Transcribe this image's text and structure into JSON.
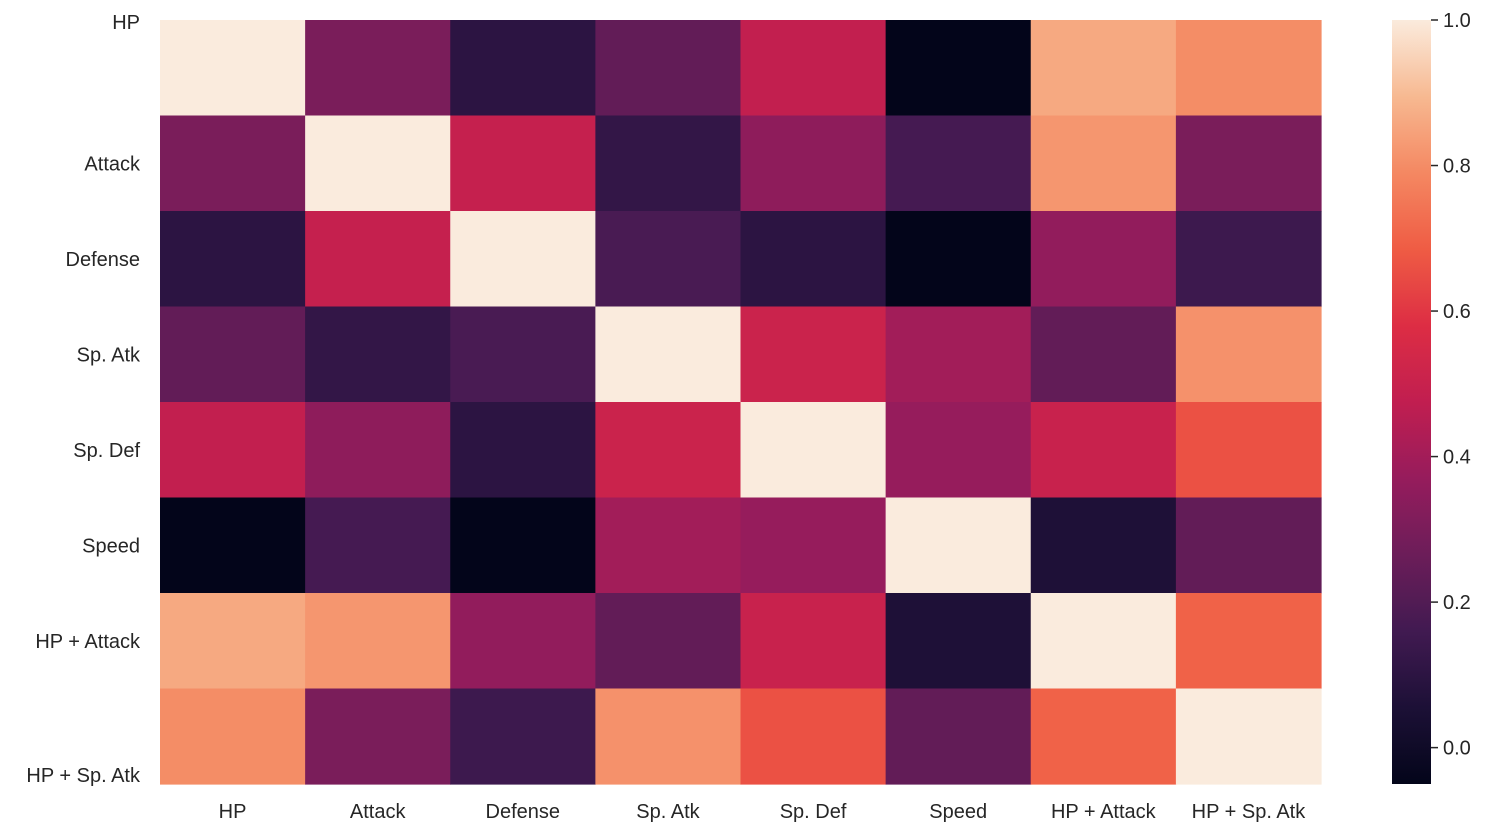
{
  "chart_data": {
    "type": "heatmap",
    "title": "",
    "xlabel": "",
    "ylabel": "",
    "x_labels": [
      "HP",
      "Attack",
      "Defense",
      "Sp. Atk",
      "Sp. Def",
      "Speed",
      "HP + Attack",
      "HP + Sp. Atk"
    ],
    "y_labels": [
      "HP",
      "Attack",
      "Defense",
      "Sp. Atk",
      "Sp. Def",
      "Speed",
      "HP + Attack",
      "HP + Sp. Atk"
    ],
    "values": [
      [
        1.0,
        0.3,
        0.1,
        0.24,
        0.48,
        -0.05,
        0.86,
        0.8
      ],
      [
        0.3,
        1.0,
        0.49,
        0.12,
        0.35,
        0.17,
        0.82,
        0.3
      ],
      [
        0.1,
        0.49,
        1.0,
        0.18,
        0.1,
        -0.06,
        0.36,
        0.15
      ],
      [
        0.24,
        0.12,
        0.18,
        1.0,
        0.51,
        0.4,
        0.24,
        0.81
      ],
      [
        0.48,
        0.35,
        0.1,
        0.51,
        1.0,
        0.37,
        0.5,
        0.66
      ],
      [
        -0.05,
        0.17,
        -0.06,
        0.4,
        0.37,
        1.0,
        0.06,
        0.24
      ],
      [
        0.86,
        0.82,
        0.36,
        0.24,
        0.5,
        0.06,
        1.0,
        0.7
      ],
      [
        0.8,
        0.3,
        0.15,
        0.81,
        0.66,
        0.24,
        0.7,
        1.0
      ]
    ],
    "colorscale": "rocket",
    "vmin": -0.05,
    "vmax": 1.0,
    "colorbar_ticks": [
      "0.0",
      "0.2",
      "0.4",
      "0.6",
      "0.8",
      "1.0"
    ],
    "legend": "right"
  }
}
